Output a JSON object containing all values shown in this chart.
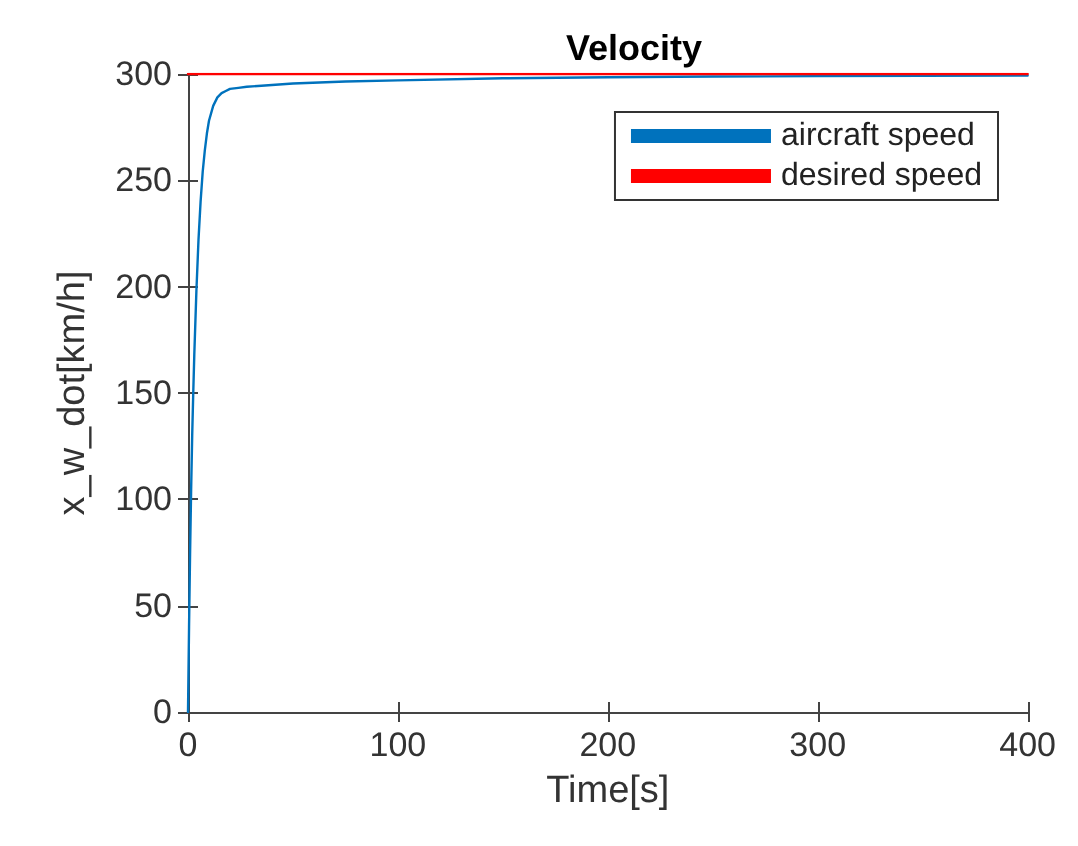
{
  "chart_data": {
    "type": "line",
    "title": "Velocity",
    "xlabel": "Time[s]",
    "ylabel": "x_w_dot[km/h]",
    "xlim": [
      0,
      400
    ],
    "xticks": [
      0,
      100,
      200,
      300,
      400
    ],
    "ylim": [
      0,
      300
    ],
    "yticks": [
      0,
      50,
      100,
      150,
      200,
      250,
      300
    ],
    "legend": "top right",
    "grid": false,
    "marker": "none",
    "line_style": "solid",
    "series": [
      {
        "name": "aircraft speed",
        "color": "#0072bd",
        "x": [
          0,
          0.5,
          1,
          1.5,
          2,
          2.5,
          3,
          4,
          5,
          6,
          7,
          8,
          9,
          10,
          12,
          14,
          16,
          18,
          20,
          24,
          28,
          35,
          50,
          75,
          100,
          150,
          200,
          250,
          300,
          350,
          400
        ],
        "values": [
          0,
          40,
          75,
          105,
          130,
          150,
          168,
          198,
          222,
          240,
          254,
          264,
          272,
          278,
          285,
          289,
          291,
          292,
          293,
          293.5,
          294,
          294.5,
          295.5,
          296.5,
          297,
          298,
          298.5,
          298.8,
          299,
          299.2,
          299.3
        ]
      },
      {
        "name": "desired speed",
        "color": "#ff0000",
        "x": [
          0,
          400
        ],
        "values": [
          300,
          300
        ]
      }
    ]
  }
}
